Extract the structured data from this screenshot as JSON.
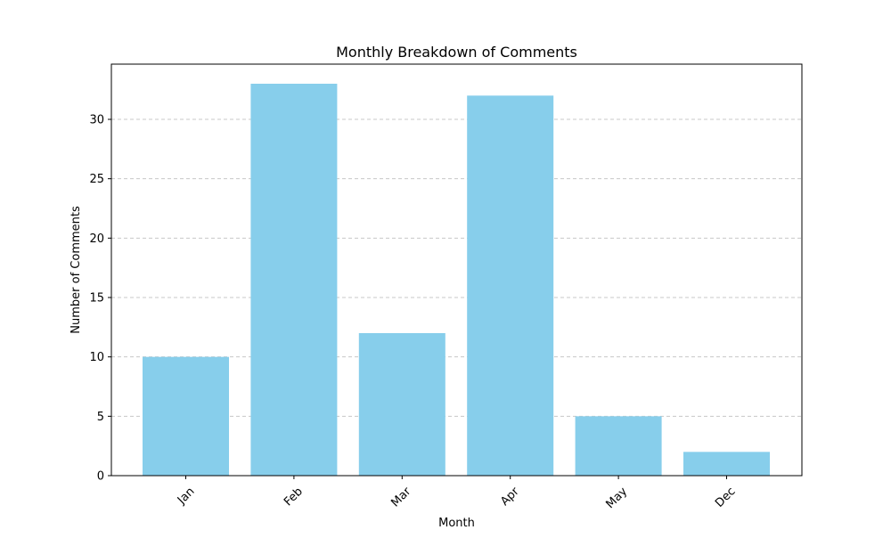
{
  "chart_data": {
    "type": "bar",
    "title": "Monthly Breakdown of Comments",
    "xlabel": "Month",
    "ylabel": "Number of Comments",
    "categories": [
      "Jan",
      "Feb",
      "Mar",
      "Apr",
      "May",
      "Dec"
    ],
    "values": [
      10,
      33,
      12,
      32,
      5,
      2
    ],
    "ylim": [
      0,
      34.65
    ],
    "yticks": [
      0,
      5,
      10,
      15,
      20,
      25,
      30
    ],
    "ytick_labels": [
      "0",
      "5",
      "10",
      "15",
      "20",
      "25",
      "30"
    ],
    "grid": "y-dashed",
    "legend": "none",
    "x_tick_rotation": 45,
    "colors": {
      "bar": "#87ceeb",
      "grid": "#c8c8c8",
      "axes": "#000000"
    }
  }
}
